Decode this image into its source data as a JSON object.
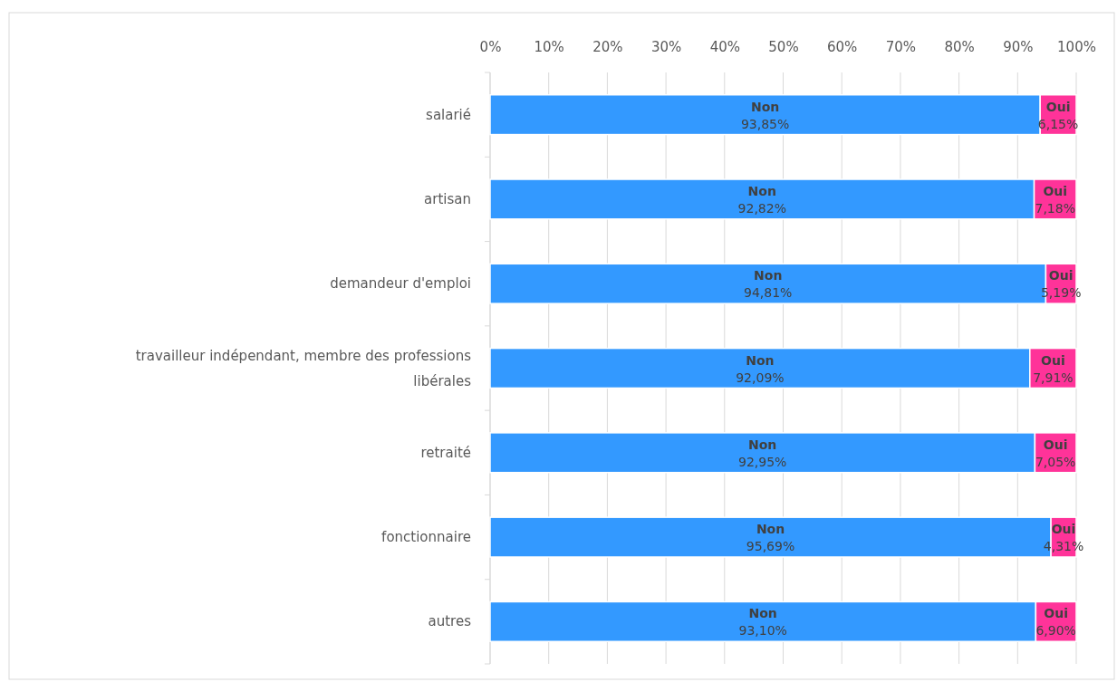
{
  "chart_data": {
    "type": "bar",
    "orientation": "horizontal",
    "stacked": true,
    "categories": [
      "salarié",
      "artisan",
      "demandeur d'emploi",
      "travailleur indépendant, membre des professions libérales",
      "retraité",
      "fonctionnaire",
      "autres"
    ],
    "series": [
      {
        "name": "Non",
        "color": "#3399ff",
        "values": [
          93.85,
          92.82,
          94.81,
          92.09,
          92.95,
          95.69,
          93.1
        ],
        "value_labels": [
          "93,85%",
          "92,82%",
          "94,81%",
          "92,09%",
          "92,95%",
          "95,69%",
          "93,10%"
        ]
      },
      {
        "name": "Oui",
        "color": "#ff3399",
        "values": [
          6.15,
          7.18,
          5.19,
          7.91,
          7.05,
          4.31,
          6.9
        ],
        "value_labels": [
          "6,15%",
          "7,18%",
          "5,19%",
          "7,91%",
          "7,05%",
          "4,31%",
          "6,90%"
        ]
      }
    ],
    "xlim": [
      0,
      100
    ],
    "xticks": [
      {
        "value": 0,
        "label": "0%"
      },
      {
        "value": 10,
        "label": "10%"
      },
      {
        "value": 20,
        "label": "20%"
      },
      {
        "value": 30,
        "label": "30%"
      },
      {
        "value": 40,
        "label": "40%"
      },
      {
        "value": 50,
        "label": "50%"
      },
      {
        "value": 60,
        "label": "60%"
      },
      {
        "value": 70,
        "label": "70%"
      },
      {
        "value": 80,
        "label": "80%"
      },
      {
        "value": 90,
        "label": "90%"
      },
      {
        "value": 100,
        "label": "100%"
      }
    ],
    "grid": "x",
    "legend": false
  }
}
